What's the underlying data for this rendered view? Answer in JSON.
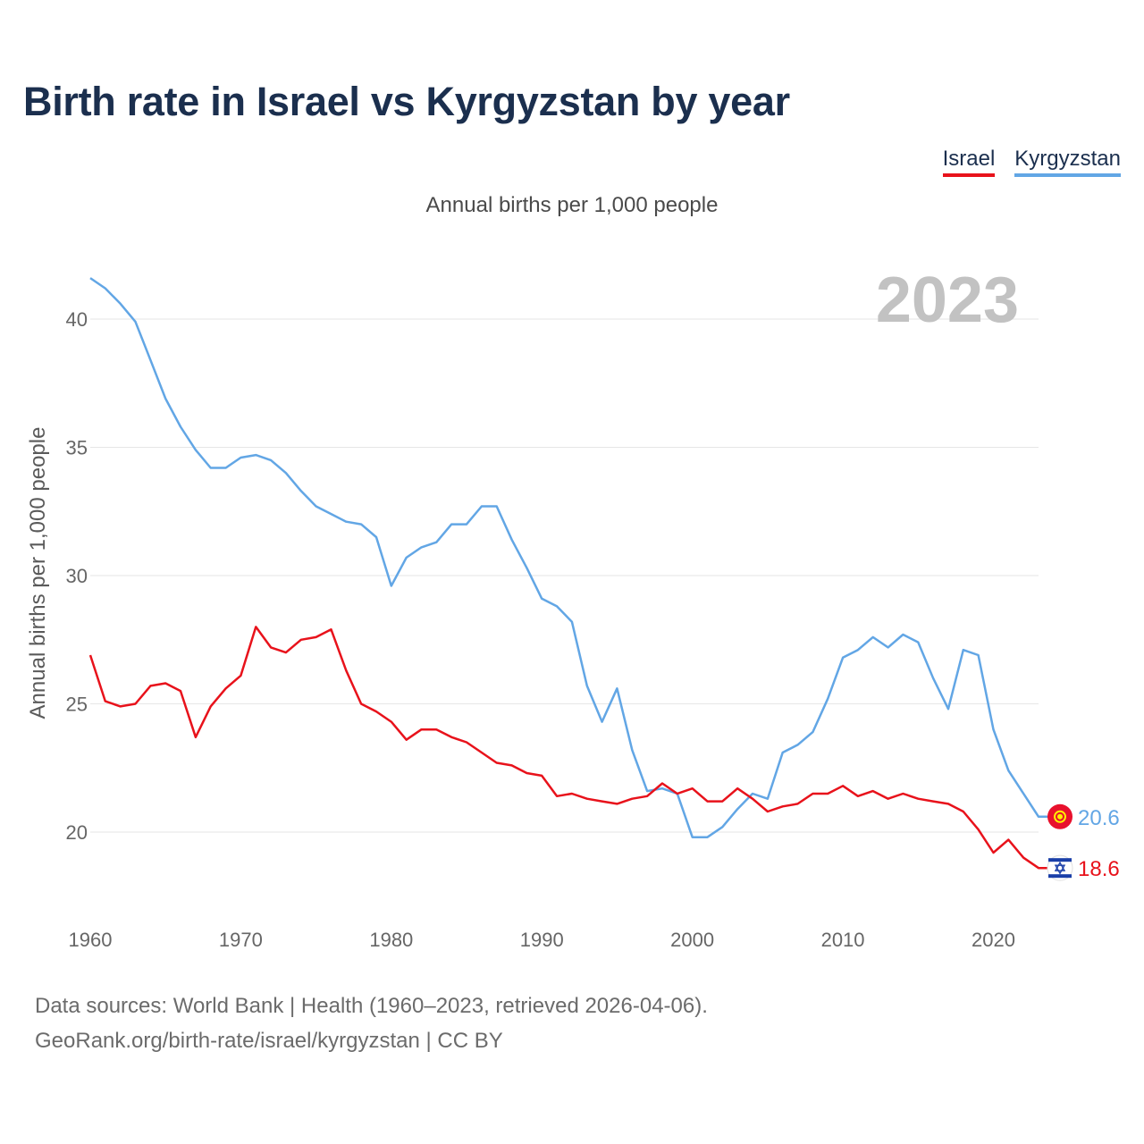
{
  "title": "Birth rate in Israel vs Kyrgyzstan by year",
  "subtitle": "Annual births per 1,000 people",
  "legend": [
    {
      "label": "Israel",
      "color": "#e8121b"
    },
    {
      "label": "Kyrgyzstan",
      "color": "#62a6e5"
    }
  ],
  "footer": {
    "line1": "Data sources: World Bank | Health (1960–2023, retrieved 2026-04-06).",
    "line2": "GeoRank.org/birth-rate/israel/kyrgyzstan | CC BY"
  },
  "chart_data": {
    "type": "line",
    "title": "Birth rate in Israel vs Kyrgyzstan by year",
    "ylabel": "Annual births per 1,000 people",
    "xlabel": "",
    "year_label": "2023",
    "xlim": [
      1960,
      2023
    ],
    "ylim": [
      17,
      42
    ],
    "x_ticks": [
      1960,
      1970,
      1980,
      1990,
      2000,
      2010,
      2020
    ],
    "y_ticks": [
      20,
      25,
      30,
      35,
      40
    ],
    "grid": true,
    "series": [
      {
        "name": "Kyrgyzstan",
        "color": "#62a6e5",
        "end_label": "20.6",
        "flag": "kyrgyzstan-flag-icon",
        "x": [
          1960,
          1961,
          1962,
          1963,
          1964,
          1965,
          1966,
          1967,
          1968,
          1969,
          1970,
          1971,
          1972,
          1973,
          1974,
          1975,
          1976,
          1977,
          1978,
          1979,
          1980,
          1981,
          1982,
          1983,
          1984,
          1985,
          1986,
          1987,
          1988,
          1989,
          1990,
          1991,
          1992,
          1993,
          1994,
          1995,
          1996,
          1997,
          1998,
          1999,
          2000,
          2001,
          2002,
          2003,
          2004,
          2005,
          2006,
          2007,
          2008,
          2009,
          2010,
          2011,
          2012,
          2013,
          2014,
          2015,
          2016,
          2017,
          2018,
          2019,
          2020,
          2021,
          2022,
          2023
        ],
        "values": [
          41.6,
          41.2,
          40.6,
          39.9,
          38.4,
          36.9,
          35.8,
          34.9,
          34.2,
          34.2,
          34.6,
          34.7,
          34.5,
          34.0,
          33.3,
          32.7,
          32.4,
          32.1,
          32.0,
          31.5,
          29.6,
          30.7,
          31.1,
          31.3,
          32.0,
          32.0,
          32.7,
          32.7,
          31.4,
          30.3,
          29.1,
          28.8,
          28.2,
          25.7,
          24.3,
          25.6,
          23.2,
          21.6,
          21.7,
          21.5,
          19.8,
          19.8,
          20.2,
          20.9,
          21.5,
          21.3,
          23.1,
          23.4,
          23.9,
          25.2,
          26.8,
          27.1,
          27.6,
          27.2,
          27.7,
          27.4,
          26.0,
          24.8,
          27.1,
          26.9,
          24.0,
          22.4,
          21.5,
          20.6
        ]
      },
      {
        "name": "Israel",
        "color": "#e8121b",
        "end_label": "18.6",
        "flag": "israel-flag-icon",
        "x": [
          1960,
          1961,
          1962,
          1963,
          1964,
          1965,
          1966,
          1967,
          1968,
          1969,
          1970,
          1971,
          1972,
          1973,
          1974,
          1975,
          1976,
          1977,
          1978,
          1979,
          1980,
          1981,
          1982,
          1983,
          1984,
          1985,
          1986,
          1987,
          1988,
          1989,
          1990,
          1991,
          1992,
          1993,
          1994,
          1995,
          1996,
          1997,
          1998,
          1999,
          2000,
          2001,
          2002,
          2003,
          2004,
          2005,
          2006,
          2007,
          2008,
          2009,
          2010,
          2011,
          2012,
          2013,
          2014,
          2015,
          2016,
          2017,
          2018,
          2019,
          2020,
          2021,
          2022,
          2023
        ],
        "values": [
          26.9,
          25.1,
          24.9,
          25.0,
          25.7,
          25.8,
          25.5,
          23.7,
          24.9,
          25.6,
          26.1,
          28.0,
          27.2,
          27.0,
          27.5,
          27.6,
          27.9,
          26.3,
          25.0,
          24.7,
          24.3,
          23.6,
          24.0,
          24.0,
          23.7,
          23.5,
          23.1,
          22.7,
          22.6,
          22.3,
          22.2,
          21.4,
          21.5,
          21.3,
          21.2,
          21.1,
          21.3,
          21.4,
          21.9,
          21.5,
          21.7,
          21.2,
          21.2,
          21.7,
          21.3,
          20.8,
          21.0,
          21.1,
          21.5,
          21.5,
          21.8,
          21.4,
          21.6,
          21.3,
          21.5,
          21.3,
          21.2,
          21.1,
          20.8,
          20.1,
          19.2,
          19.7,
          19.0,
          18.6
        ]
      }
    ]
  }
}
